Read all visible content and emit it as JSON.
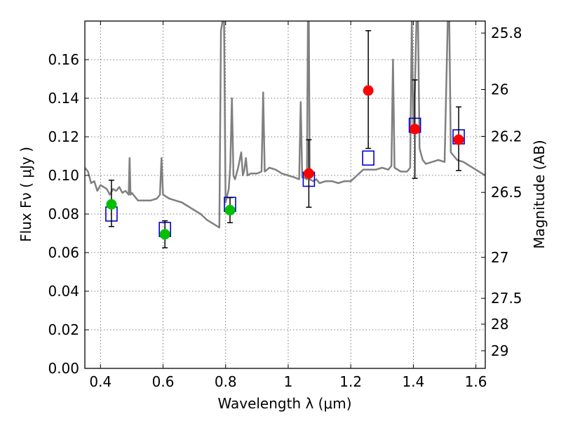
{
  "chart_data": {
    "type": "scatter",
    "xlabel": "Wavelength  λ (μm)",
    "ylabel": "Flux  Fν  ( μJy )",
    "y2label": "Magnitude (AB)",
    "xlim": [
      0.35,
      1.63
    ],
    "ylim": [
      0.0,
      0.18
    ],
    "grid": true,
    "x_ticks": [
      0.4,
      0.6,
      0.8,
      1.0,
      1.2,
      1.4,
      1.6
    ],
    "x_tick_labels": [
      "0.4",
      "0.6",
      "0.8",
      "1",
      "1.2",
      "1.4",
      "1.6"
    ],
    "y_ticks": [
      0.0,
      0.02,
      0.04,
      0.06,
      0.08,
      0.1,
      0.12,
      0.14,
      0.16
    ],
    "y_tick_labels": [
      "0.00",
      "0.02",
      "0.04",
      "0.06",
      "0.08",
      "0.10",
      "0.12",
      "0.14",
      "0.16"
    ],
    "mag_ticks": [
      {
        "label": "25.8",
        "value": 25.8
      },
      {
        "label": "26",
        "value": 26.0
      },
      {
        "label": "26.2",
        "value": 26.2
      },
      {
        "label": "26.5",
        "value": 26.5
      },
      {
        "label": "27",
        "value": 27.0
      },
      {
        "label": "27.5",
        "value": 27.5
      },
      {
        "label": "28",
        "value": 28.0
      },
      {
        "label": "29",
        "value": 29.0
      }
    ],
    "colors": {
      "observed_green": "#00c000",
      "observed_red": "#ff0000",
      "model_box": "#0000cc",
      "spectrum": "#808080",
      "errorbar": "#000000"
    },
    "series": [
      {
        "kind": "observed",
        "color_key": "observed_green",
        "points": [
          {
            "x": 0.435,
            "y": 0.085,
            "ylo": 0.0735,
            "yhi": 0.0975
          },
          {
            "x": 0.606,
            "y": 0.0695,
            "ylo": 0.0625,
            "yhi": 0.0765
          },
          {
            "x": 0.814,
            "y": 0.082,
            "ylo": 0.0755,
            "yhi": 0.0885
          }
        ]
      },
      {
        "kind": "observed",
        "color_key": "observed_red",
        "points": [
          {
            "x": 1.066,
            "y": 0.101,
            "ylo": 0.0835,
            "yhi": 0.1185
          },
          {
            "x": 1.256,
            "y": 0.144,
            "ylo": 0.114,
            "yhi": 0.175
          },
          {
            "x": 1.405,
            "y": 0.124,
            "ylo": 0.0985,
            "yhi": 0.1495
          },
          {
            "x": 1.545,
            "y": 0.1185,
            "ylo": 0.1025,
            "yhi": 0.1355
          }
        ]
      },
      {
        "kind": "model_bandpass",
        "color_key": "model_box",
        "points": [
          {
            "x": 0.435,
            "y": 0.08
          },
          {
            "x": 0.606,
            "y": 0.072
          },
          {
            "x": 0.814,
            "y": 0.085
          },
          {
            "x": 1.066,
            "y": 0.098
          },
          {
            "x": 1.256,
            "y": 0.109
          },
          {
            "x": 1.405,
            "y": 0.126
          },
          {
            "x": 1.545,
            "y": 0.12
          }
        ]
      }
    ],
    "spectrum": {
      "color_key": "spectrum",
      "points": [
        [
          0.35,
          0.104
        ],
        [
          0.36,
          0.102
        ],
        [
          0.37,
          0.096
        ],
        [
          0.38,
          0.097
        ],
        [
          0.39,
          0.092
        ],
        [
          0.4,
          0.095
        ],
        [
          0.41,
          0.094
        ],
        [
          0.42,
          0.093
        ],
        [
          0.43,
          0.09
        ],
        [
          0.44,
          0.093
        ],
        [
          0.45,
          0.092
        ],
        [
          0.46,
          0.094
        ],
        [
          0.47,
          0.091
        ],
        [
          0.48,
          0.092
        ],
        [
          0.49,
          0.09
        ],
        [
          0.493,
          0.109
        ],
        [
          0.496,
          0.09
        ],
        [
          0.5,
          0.091
        ],
        [
          0.52,
          0.087
        ],
        [
          0.54,
          0.087
        ],
        [
          0.56,
          0.087
        ],
        [
          0.58,
          0.088
        ],
        [
          0.59,
          0.09
        ],
        [
          0.595,
          0.109
        ],
        [
          0.6,
          0.09
        ],
        [
          0.62,
          0.088
        ],
        [
          0.64,
          0.087
        ],
        [
          0.66,
          0.086
        ],
        [
          0.68,
          0.084
        ],
        [
          0.7,
          0.082
        ],
        [
          0.72,
          0.08
        ],
        [
          0.74,
          0.077
        ],
        [
          0.76,
          0.075
        ],
        [
          0.78,
          0.073
        ],
        [
          0.785,
          0.175
        ],
        [
          0.79,
          0.18
        ],
        [
          0.795,
          0.18
        ],
        [
          0.8,
          0.086
        ],
        [
          0.81,
          0.093
        ],
        [
          0.815,
          0.105
        ],
        [
          0.82,
          0.14
        ],
        [
          0.825,
          0.1
        ],
        [
          0.83,
          0.098
        ],
        [
          0.84,
          0.104
        ],
        [
          0.85,
          0.112
        ],
        [
          0.855,
          0.1
        ],
        [
          0.86,
          0.103
        ],
        [
          0.865,
          0.109
        ],
        [
          0.87,
          0.1
        ],
        [
          0.88,
          0.101
        ],
        [
          0.9,
          0.101
        ],
        [
          0.915,
          0.102
        ],
        [
          0.92,
          0.143
        ],
        [
          0.925,
          0.102
        ],
        [
          0.94,
          0.104
        ],
        [
          0.96,
          0.103
        ],
        [
          0.98,
          0.101
        ],
        [
          1.0,
          0.1
        ],
        [
          1.02,
          0.099
        ],
        [
          1.035,
          0.098
        ],
        [
          1.04,
          0.138
        ],
        [
          1.045,
          0.099
        ],
        [
          1.05,
          0.099
        ],
        [
          1.06,
          0.098
        ],
        [
          1.063,
          0.18
        ],
        [
          1.066,
          0.18
        ],
        [
          1.069,
          0.098
        ],
        [
          1.08,
          0.097
        ],
        [
          1.09,
          0.098
        ],
        [
          1.1,
          0.096
        ],
        [
          1.12,
          0.097
        ],
        [
          1.14,
          0.097
        ],
        [
          1.16,
          0.096
        ],
        [
          1.18,
          0.097
        ],
        [
          1.2,
          0.097
        ],
        [
          1.22,
          0.1
        ],
        [
          1.24,
          0.103
        ],
        [
          1.26,
          0.103
        ],
        [
          1.28,
          0.103
        ],
        [
          1.3,
          0.104
        ],
        [
          1.32,
          0.103
        ],
        [
          1.33,
          0.105
        ],
        [
          1.335,
          0.16
        ],
        [
          1.34,
          0.104
        ],
        [
          1.36,
          0.102
        ],
        [
          1.38,
          0.102
        ],
        [
          1.39,
          0.104
        ],
        [
          1.395,
          0.18
        ],
        [
          1.4,
          0.125
        ],
        [
          1.405,
          0.145
        ],
        [
          1.41,
          0.18
        ],
        [
          1.415,
          0.18
        ],
        [
          1.42,
          0.114
        ],
        [
          1.43,
          0.108
        ],
        [
          1.44,
          0.106
        ],
        [
          1.46,
          0.107
        ],
        [
          1.48,
          0.108
        ],
        [
          1.5,
          0.107
        ],
        [
          1.51,
          0.18
        ],
        [
          1.515,
          0.18
        ],
        [
          1.52,
          0.112
        ],
        [
          1.54,
          0.108
        ],
        [
          1.56,
          0.107
        ],
        [
          1.58,
          0.105
        ],
        [
          1.6,
          0.103
        ],
        [
          1.62,
          0.101
        ],
        [
          1.63,
          0.1
        ]
      ]
    }
  }
}
